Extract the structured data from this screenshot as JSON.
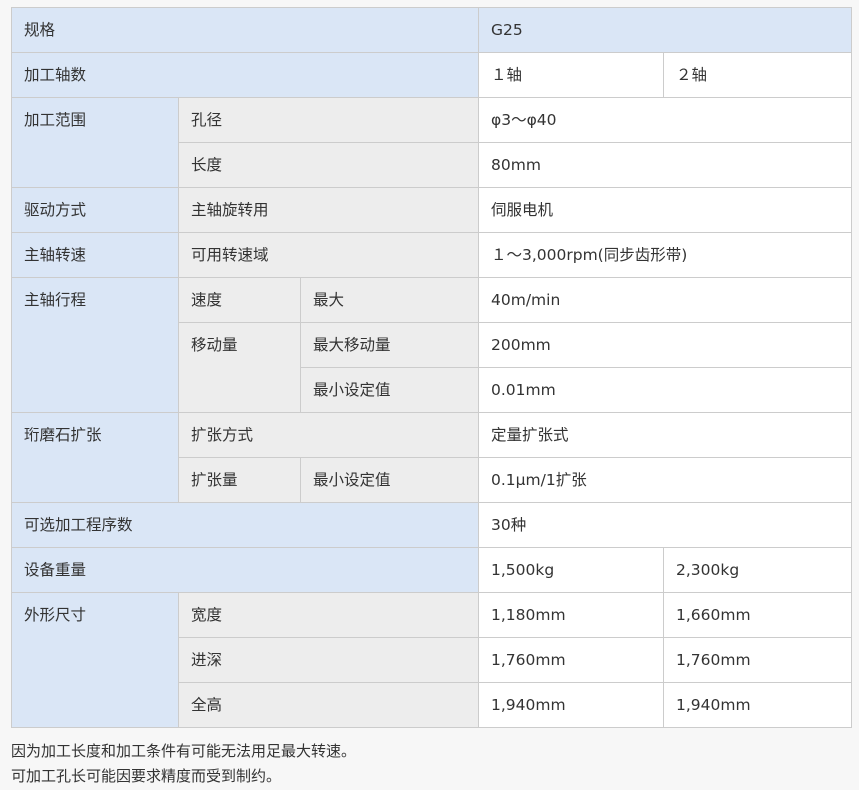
{
  "table": {
    "rows": [
      [
        {
          "t": "规格",
          "c": "b",
          "cs": 3
        },
        {
          "t": "G25",
          "c": "b",
          "cs": 2
        }
      ],
      [
        {
          "t": "加工轴数",
          "c": "b",
          "cs": 3
        },
        {
          "t": "１轴",
          "c": "w"
        },
        {
          "t": "２轴",
          "c": "w"
        }
      ],
      [
        {
          "t": "加工范围",
          "c": "b",
          "rs": 2
        },
        {
          "t": "孔径",
          "c": "g",
          "cs": 2
        },
        {
          "t": "φ3〜φ40",
          "c": "w",
          "cs": 2
        }
      ],
      [
        {
          "t": "长度",
          "c": "g",
          "cs": 2
        },
        {
          "t": "80mm",
          "c": "w",
          "cs": 2
        }
      ],
      [
        {
          "t": "驱动方式",
          "c": "b"
        },
        {
          "t": "主轴旋转用",
          "c": "g",
          "cs": 2
        },
        {
          "t": "伺服电机",
          "c": "w",
          "cs": 2
        }
      ],
      [
        {
          "t": "主轴转速",
          "c": "b"
        },
        {
          "t": "可用转速域",
          "c": "g",
          "cs": 2
        },
        {
          "t": "１〜3,000rpm(同步齿形带)",
          "c": "w",
          "cs": 2
        }
      ],
      [
        {
          "t": "主轴行程",
          "c": "b",
          "rs": 3
        },
        {
          "t": "速度",
          "c": "g"
        },
        {
          "t": "最大",
          "c": "g"
        },
        {
          "t": "40m/min",
          "c": "w",
          "cs": 2
        }
      ],
      [
        {
          "t": "移动量",
          "c": "g",
          "rs": 2
        },
        {
          "t": "最大移动量",
          "c": "g"
        },
        {
          "t": "200mm",
          "c": "w",
          "cs": 2
        }
      ],
      [
        {
          "t": "最小设定值",
          "c": "g"
        },
        {
          "t": "0.01mm",
          "c": "w",
          "cs": 2
        }
      ],
      [
        {
          "t": "珩磨石扩张",
          "c": "b",
          "rs": 2
        },
        {
          "t": "扩张方式",
          "c": "g",
          "cs": 2
        },
        {
          "t": "定量扩张式",
          "c": "w",
          "cs": 2
        }
      ],
      [
        {
          "t": "扩张量",
          "c": "g"
        },
        {
          "t": "最小设定值",
          "c": "g"
        },
        {
          "t": "0.1μm/1扩张",
          "c": "w",
          "cs": 2
        }
      ],
      [
        {
          "t": "可选加工程序数",
          "c": "b",
          "cs": 3
        },
        {
          "t": "30种",
          "c": "w",
          "cs": 2
        }
      ],
      [
        {
          "t": "设备重量",
          "c": "b",
          "cs": 3
        },
        {
          "t": "1,500kg",
          "c": "w"
        },
        {
          "t": "2,300kg",
          "c": "w"
        }
      ],
      [
        {
          "t": "外形尺寸",
          "c": "b",
          "rs": 3
        },
        {
          "t": "宽度",
          "c": "g",
          "cs": 2
        },
        {
          "t": "1,180mm",
          "c": "w"
        },
        {
          "t": "1,660mm",
          "c": "w"
        }
      ],
      [
        {
          "t": "进深",
          "c": "g",
          "cs": 2
        },
        {
          "t": "1,760mm",
          "c": "w"
        },
        {
          "t": "1,760mm",
          "c": "w"
        }
      ],
      [
        {
          "t": "全高",
          "c": "g",
          "cs": 2
        },
        {
          "t": "1,940mm",
          "c": "w"
        },
        {
          "t": "1,940mm",
          "c": "w"
        }
      ]
    ]
  },
  "notes": [
    "因为加工长度和加工条件有可能无法用足最大转速。",
    "可加工孔长可能因要求精度而受到制约。"
  ]
}
